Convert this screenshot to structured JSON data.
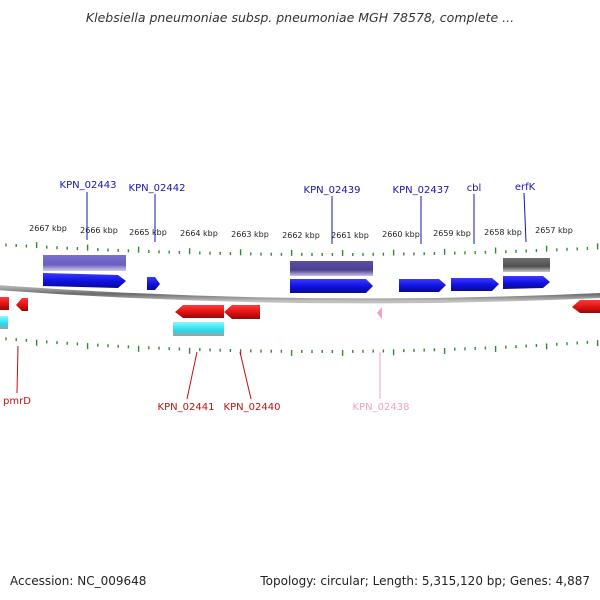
{
  "title": "Klebsiella pneumoniae subsp. pneumoniae MGH 78578, complete ...",
  "footer": {
    "accession": "Accession: NC_009648",
    "topology": "Topology: circular; Length: 5,315,120 bp; Genes: 4,887"
  },
  "colors": {
    "backbone": "#8a8a8a",
    "tick": "#2e8b2e",
    "forward_gene": "#1010e0",
    "reverse_gene": "#e01010",
    "forward_label": "#1515b0",
    "reverse_label": "#c01010",
    "pseudo_label": "#f0a0c8",
    "feature_purple": "#4a3f8c",
    "feature_light_purple": "#6a5fc0",
    "feature_gray": "#606060",
    "feature_cyan": "#22dcec"
  },
  "tick_labels": [
    "2667 kbp",
    "2666 kbp",
    "2665 kbp",
    "2664 kbp",
    "2663 kbp",
    "2662 kbp",
    "2661 kbp",
    "2660 kbp",
    "2659 kbp",
    "2658 kbp",
    "2657 kbp"
  ],
  "forward_labels": [
    "KPN_02443",
    "KPN_02442",
    "KPN_02439",
    "KPN_02437",
    "cbl",
    "erfK"
  ],
  "reverse_labels": [
    "pmrD",
    "KPN_02441",
    "KPN_02440",
    "KPN_02438"
  ]
}
